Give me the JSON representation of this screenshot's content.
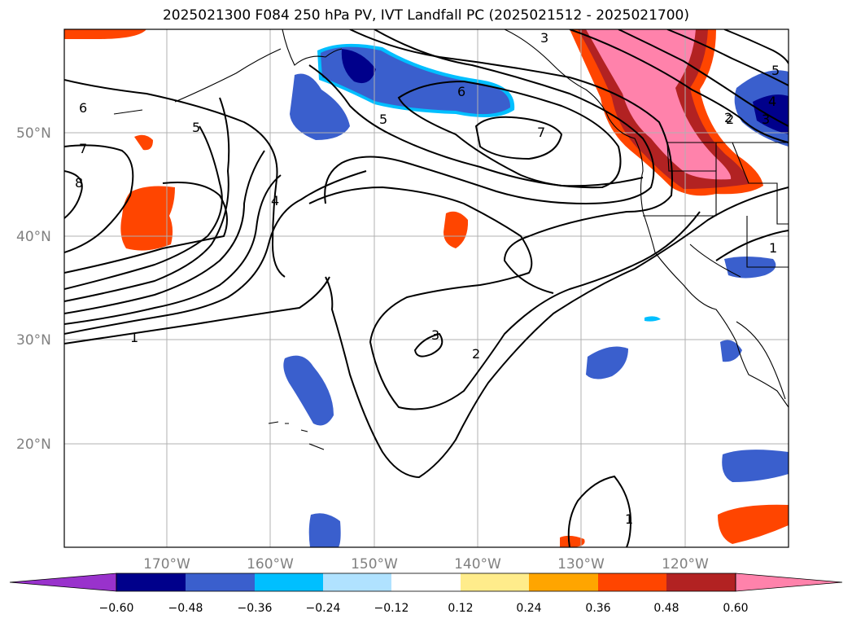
{
  "title": "2025021300 F084 250 hPa PV, IVT Landfall PC (2025021512 - 2025021700)",
  "map": {
    "lat_labels": [
      "50°N",
      "40°N",
      "30°N",
      "20°N"
    ],
    "lon_labels": [
      "170°W",
      "160°W",
      "150°W",
      "140°W",
      "130°W",
      "120°W"
    ],
    "contour_labels": [
      "1",
      "2",
      "3",
      "4",
      "5",
      "6",
      "7",
      "8",
      "6",
      "5",
      "7",
      "3",
      "2",
      "1",
      "1",
      "5",
      "4",
      "3",
      "2"
    ]
  },
  "colorbar": {
    "colors": [
      "#9932cc",
      "#00008b",
      "#3a5fcd",
      "#00bfff",
      "#b0e2ff",
      "#ffffff",
      "#ffec8b",
      "#ffa500",
      "#ff4500",
      "#b22222",
      "#ff82ab"
    ],
    "tick_labels": [
      "−0.60",
      "−0.48",
      "−0.36",
      "−0.24",
      "−0.12",
      "0.12",
      "0.24",
      "0.36",
      "0.48",
      "0.60"
    ]
  }
}
